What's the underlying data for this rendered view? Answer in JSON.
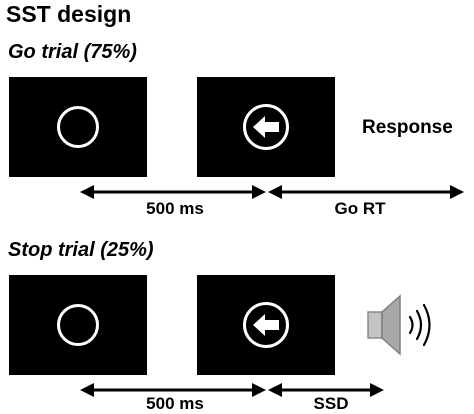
{
  "title": "SST design",
  "go_trial": {
    "heading": "Go trial (75%)",
    "response_label": "Response",
    "interval_1_label": "500 ms",
    "interval_2_label": "Go RT"
  },
  "stop_trial": {
    "heading": "Stop trial (25%)",
    "interval_1_label": "500 ms",
    "interval_2_label": "SSD"
  },
  "icons": {
    "fixation": "circle-icon",
    "go_stimulus": "left-arrow-icon",
    "stop_signal": "speaker-sound-icon"
  },
  "colors": {
    "screen": "#000000",
    "stimulus": "#ffffff",
    "speaker": "#a8a8a8"
  }
}
